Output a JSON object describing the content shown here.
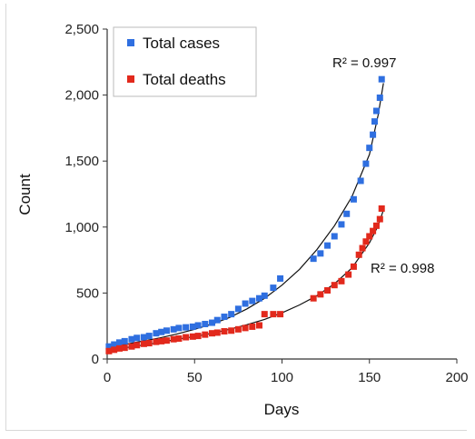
{
  "chart_data": {
    "type": "scatter",
    "title": "",
    "xlabel": "Days",
    "ylabel": "Count",
    "xlim": [
      0,
      200
    ],
    "ylim": [
      0,
      2500
    ],
    "x_ticks": [
      "0",
      "50",
      "100",
      "150",
      "200"
    ],
    "y_ticks": [
      "0",
      "500",
      "1,000",
      "1,500",
      "2,000",
      "2,500"
    ],
    "grid": false,
    "legend_position": "top-left",
    "series": [
      {
        "name": "Total cases",
        "color": "#2f6fe0",
        "trendline_r2": "R² = 0.997",
        "points": [
          [
            1,
            95
          ],
          [
            4,
            110
          ],
          [
            7,
            125
          ],
          [
            10,
            135
          ],
          [
            14,
            150
          ],
          [
            17,
            160
          ],
          [
            21,
            165
          ],
          [
            24,
            175
          ],
          [
            28,
            195
          ],
          [
            31,
            205
          ],
          [
            34,
            215
          ],
          [
            38,
            225
          ],
          [
            41,
            235
          ],
          [
            45,
            240
          ],
          [
            49,
            245
          ],
          [
            52,
            255
          ],
          [
            56,
            265
          ],
          [
            60,
            275
          ],
          [
            63,
            295
          ],
          [
            67,
            320
          ],
          [
            71,
            340
          ],
          [
            75,
            380
          ],
          [
            79,
            420
          ],
          [
            83,
            440
          ],
          [
            87,
            460
          ],
          [
            90,
            480
          ],
          [
            95,
            540
          ],
          [
            99,
            610
          ],
          [
            118,
            760
          ],
          [
            122,
            800
          ],
          [
            126,
            860
          ],
          [
            130,
            930
          ],
          [
            134,
            1020
          ],
          [
            137,
            1100
          ],
          [
            141,
            1210
          ],
          [
            145,
            1350
          ],
          [
            148,
            1480
          ],
          [
            150,
            1600
          ],
          [
            152,
            1700
          ],
          [
            153,
            1800
          ],
          [
            154,
            1880
          ],
          [
            156,
            1980
          ],
          [
            157,
            2120
          ]
        ],
        "fit": [
          [
            0,
            90
          ],
          [
            10,
            110
          ],
          [
            20,
            135
          ],
          [
            30,
            160
          ],
          [
            40,
            190
          ],
          [
            50,
            225
          ],
          [
            60,
            265
          ],
          [
            70,
            315
          ],
          [
            80,
            380
          ],
          [
            90,
            460
          ],
          [
            100,
            560
          ],
          [
            110,
            680
          ],
          [
            120,
            830
          ],
          [
            130,
            1010
          ],
          [
            140,
            1230
          ],
          [
            150,
            1550
          ],
          [
            155,
            1850
          ],
          [
            158,
            2090
          ]
        ]
      },
      {
        "name": "Total deaths",
        "color": "#e2291c",
        "trendline_r2": "R² = 0.998",
        "points": [
          [
            1,
            60
          ],
          [
            4,
            70
          ],
          [
            7,
            80
          ],
          [
            10,
            85
          ],
          [
            14,
            95
          ],
          [
            17,
            105
          ],
          [
            21,
            115
          ],
          [
            24,
            120
          ],
          [
            28,
            130
          ],
          [
            31,
            135
          ],
          [
            34,
            140
          ],
          [
            38,
            150
          ],
          [
            41,
            155
          ],
          [
            45,
            165
          ],
          [
            49,
            170
          ],
          [
            52,
            175
          ],
          [
            56,
            185
          ],
          [
            60,
            195
          ],
          [
            63,
            200
          ],
          [
            67,
            210
          ],
          [
            71,
            215
          ],
          [
            75,
            225
          ],
          [
            79,
            235
          ],
          [
            83,
            245
          ],
          [
            87,
            255
          ],
          [
            90,
            340
          ],
          [
            95,
            340
          ],
          [
            99,
            340
          ],
          [
            118,
            460
          ],
          [
            122,
            490
          ],
          [
            126,
            520
          ],
          [
            130,
            560
          ],
          [
            134,
            590
          ],
          [
            138,
            640
          ],
          [
            141,
            700
          ],
          [
            144,
            790
          ],
          [
            146,
            840
          ],
          [
            148,
            890
          ],
          [
            150,
            930
          ],
          [
            152,
            970
          ],
          [
            154,
            1010
          ],
          [
            156,
            1060
          ],
          [
            157,
            1140
          ]
        ],
        "fit": [
          [
            0,
            70
          ],
          [
            10,
            85
          ],
          [
            20,
            105
          ],
          [
            30,
            125
          ],
          [
            40,
            150
          ],
          [
            50,
            170
          ],
          [
            60,
            195
          ],
          [
            70,
            225
          ],
          [
            80,
            260
          ],
          [
            90,
            300
          ],
          [
            100,
            350
          ],
          [
            110,
            410
          ],
          [
            120,
            480
          ],
          [
            130,
            570
          ],
          [
            140,
            690
          ],
          [
            150,
            880
          ],
          [
            155,
            1010
          ],
          [
            158,
            1130
          ]
        ]
      }
    ]
  }
}
